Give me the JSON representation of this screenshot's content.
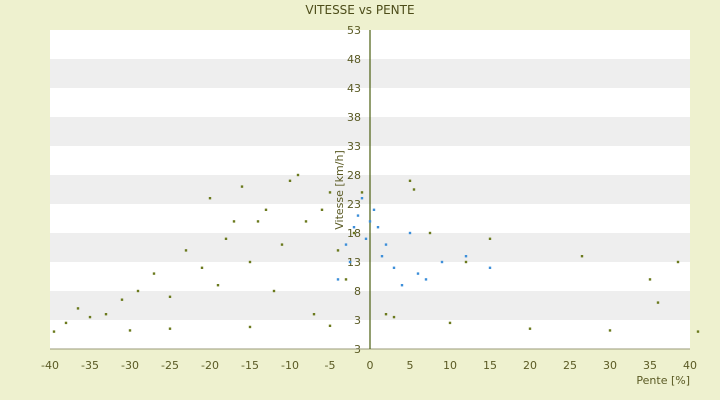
{
  "chart_data": {
    "type": "scatter",
    "title": "VITESSE vs PENTE",
    "xlabel": "Pente [%]",
    "ylabel": "Vitesse [km/h]",
    "xlim": [
      -40,
      40
    ],
    "ylim": [
      -2,
      53
    ],
    "x_ticks": [
      "-40",
      "-35",
      "-30",
      "-25",
      "-20",
      "-15",
      "-10",
      "-5",
      "0",
      "5",
      "10",
      "15",
      "20",
      "25",
      "30",
      "35",
      "40"
    ],
    "y_ticks": [
      "53",
      "48",
      "43",
      "38",
      "33",
      "28",
      "23",
      "18",
      "13",
      "8",
      "3",
      "3"
    ],
    "grid": "horizontal alternating bands",
    "legend": "none",
    "colors": {
      "primary_series": "#6b7a1e",
      "secondary_series": "#3d8fd9",
      "axis_line": "#4a5e10",
      "band_light": "#ffffff",
      "band_dark": "#eeeeee",
      "background": "#eef1cf"
    },
    "series": [
      {
        "color": "#6b7a1e",
        "points": [
          [
            -39.5,
            1.0
          ],
          [
            -38.0,
            2.5
          ],
          [
            -36.5,
            5.0
          ],
          [
            -35.0,
            3.5
          ],
          [
            -33.0,
            4.0
          ],
          [
            -31.0,
            6.5
          ],
          [
            -29.0,
            8.0
          ],
          [
            -27.0,
            11.0
          ],
          [
            -25.0,
            7.0
          ],
          [
            -23.0,
            15.0
          ],
          [
            -21.0,
            12.0
          ],
          [
            -20.0,
            24.0
          ],
          [
            -19.0,
            9.0
          ],
          [
            -18.0,
            17.0
          ],
          [
            -17.0,
            20.0
          ],
          [
            -16.0,
            26.0
          ],
          [
            -15.0,
            13.0
          ],
          [
            -14.0,
            20.0
          ],
          [
            -13.0,
            22.0
          ],
          [
            -12.0,
            8.0
          ],
          [
            -11.0,
            16.0
          ],
          [
            -10.0,
            27.0
          ],
          [
            -9.0,
            28.0
          ],
          [
            -8.0,
            20.0
          ],
          [
            -7.0,
            4.0
          ],
          [
            -6.0,
            22.0
          ],
          [
            -5.0,
            25.0
          ],
          [
            -4.0,
            15.0
          ],
          [
            -3.0,
            10.0
          ],
          [
            -2.0,
            18.0
          ],
          [
            -1.0,
            25.0
          ],
          [
            -25.0,
            1.5
          ],
          [
            -15.0,
            1.8
          ],
          [
            -5.0,
            2.0
          ],
          [
            -30.0,
            1.2
          ],
          [
            2.0,
            4.0
          ],
          [
            3.0,
            3.5
          ],
          [
            5.0,
            27.0
          ],
          [
            5.5,
            25.5
          ],
          [
            7.5,
            18.0
          ],
          [
            10.0,
            2.5
          ],
          [
            12.0,
            13.0
          ],
          [
            15.0,
            17.0
          ],
          [
            20.0,
            1.5
          ],
          [
            26.5,
            14.0
          ],
          [
            30.0,
            1.2
          ],
          [
            35.0,
            10.0
          ],
          [
            36.0,
            6.0
          ],
          [
            38.5,
            13.0
          ],
          [
            41.0,
            1.0
          ]
        ]
      },
      {
        "color": "#3d8fd9",
        "points": [
          [
            -4.0,
            10.0
          ],
          [
            -3.0,
            16.0
          ],
          [
            -2.5,
            13.0
          ],
          [
            -2.0,
            19.0
          ],
          [
            -1.5,
            21.0
          ],
          [
            -1.0,
            24.0
          ],
          [
            -0.5,
            17.0
          ],
          [
            0.0,
            20.0
          ],
          [
            0.5,
            22.0
          ],
          [
            1.0,
            19.0
          ],
          [
            1.5,
            14.0
          ],
          [
            2.0,
            16.0
          ],
          [
            3.0,
            12.0
          ],
          [
            4.0,
            9.0
          ],
          [
            5.0,
            18.0
          ],
          [
            6.0,
            11.0
          ],
          [
            7.0,
            10.0
          ],
          [
            9.0,
            13.0
          ],
          [
            12.0,
            14.0
          ],
          [
            15.0,
            12.0
          ]
        ]
      }
    ]
  }
}
